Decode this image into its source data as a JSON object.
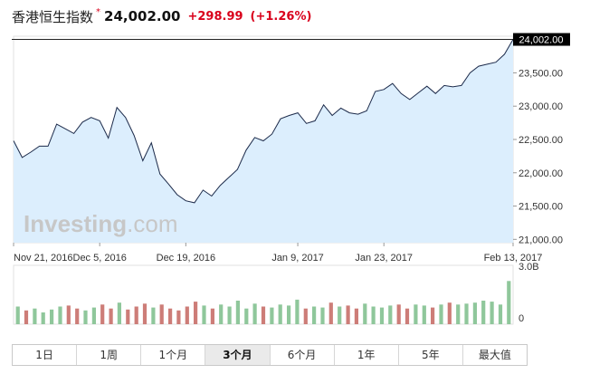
{
  "header": {
    "index_name": "香港恒生指数",
    "star": "*",
    "price": "24,002.00",
    "change": "+298.99",
    "change_pct": "(+1.26%)"
  },
  "watermark": "Investing.com",
  "colors": {
    "accent": "#d9001b",
    "line": "#1c2a4a",
    "area": "#dceefd",
    "vol_up": "#8fc79b",
    "vol_down": "#cd7d78"
  },
  "tabs": [
    {
      "label": "1日",
      "active": false
    },
    {
      "label": "1周",
      "active": false
    },
    {
      "label": "1个月",
      "active": false
    },
    {
      "label": "3个月",
      "active": true
    },
    {
      "label": "6个月",
      "active": false
    },
    {
      "label": "1年",
      "active": false
    },
    {
      "label": "5年",
      "active": false
    },
    {
      "label": "最大值",
      "active": false
    }
  ],
  "chart_data": {
    "type": "area",
    "price_axis": {
      "ticks": [
        21000,
        21500,
        22000,
        22500,
        23000,
        23500
      ],
      "tick_labels": [
        "21,000.00",
        "21,500.00",
        "22,000.00",
        "22,500.00",
        "23,000.00",
        "23,500.00"
      ],
      "ylim": [
        20950,
        24050
      ],
      "last_price_label": "24,002.00",
      "last_price": 24002
    },
    "x_labels": [
      {
        "label": "Nov 21, 2016",
        "index": 0
      },
      {
        "label": "Dec 5, 2016",
        "index": 10
      },
      {
        "label": "Dec 19, 2016",
        "index": 20
      },
      {
        "label": "Jan 9, 2017",
        "index": 33
      },
      {
        "label": "Jan 23, 2017",
        "index": 43
      },
      {
        "label": "Feb 13, 2017",
        "index": 58
      }
    ],
    "series": [
      {
        "values": [
          22480,
          22230,
          22310,
          22400,
          22400,
          22730,
          22660,
          22590,
          22760,
          22830,
          22780,
          22520,
          22980,
          22830,
          22560,
          22180,
          22450,
          21980,
          21830,
          21670,
          21580,
          21550,
          21740,
          21650,
          21810,
          21930,
          22050,
          22340,
          22530,
          22480,
          22580,
          22810,
          22860,
          22900,
          22740,
          22780,
          23020,
          22860,
          22970,
          22900,
          22880,
          22930,
          23220,
          23250,
          23340,
          23190,
          23100,
          23200,
          23300,
          23190,
          23310,
          23290,
          23310,
          23500,
          23600,
          23630,
          23660,
          23780,
          24002
        ]
      }
    ],
    "volume": {
      "axis_labels": [
        "3.0B",
        "0"
      ],
      "ylim": [
        0,
        3.0
      ],
      "unit": "B",
      "values": [
        0.9,
        0.7,
        0.8,
        0.6,
        0.75,
        0.9,
        0.95,
        0.8,
        0.7,
        0.85,
        1.0,
        0.8,
        1.1,
        0.75,
        0.9,
        1.05,
        0.85,
        1.0,
        0.8,
        0.7,
        0.9,
        1.15,
        0.95,
        0.8,
        1.0,
        0.9,
        1.2,
        0.8,
        1.05,
        0.9,
        0.85,
        1.0,
        0.95,
        1.25,
        0.8,
        0.9,
        0.85,
        1.1,
        0.9,
        0.95,
        0.8,
        1.05,
        0.9,
        0.85,
        0.95,
        1.0,
        0.8,
        1.0,
        0.95,
        0.85,
        1.0,
        1.1,
        1.0,
        1.05,
        1.1,
        1.2,
        1.15,
        1.0,
        2.2
      ]
    }
  }
}
